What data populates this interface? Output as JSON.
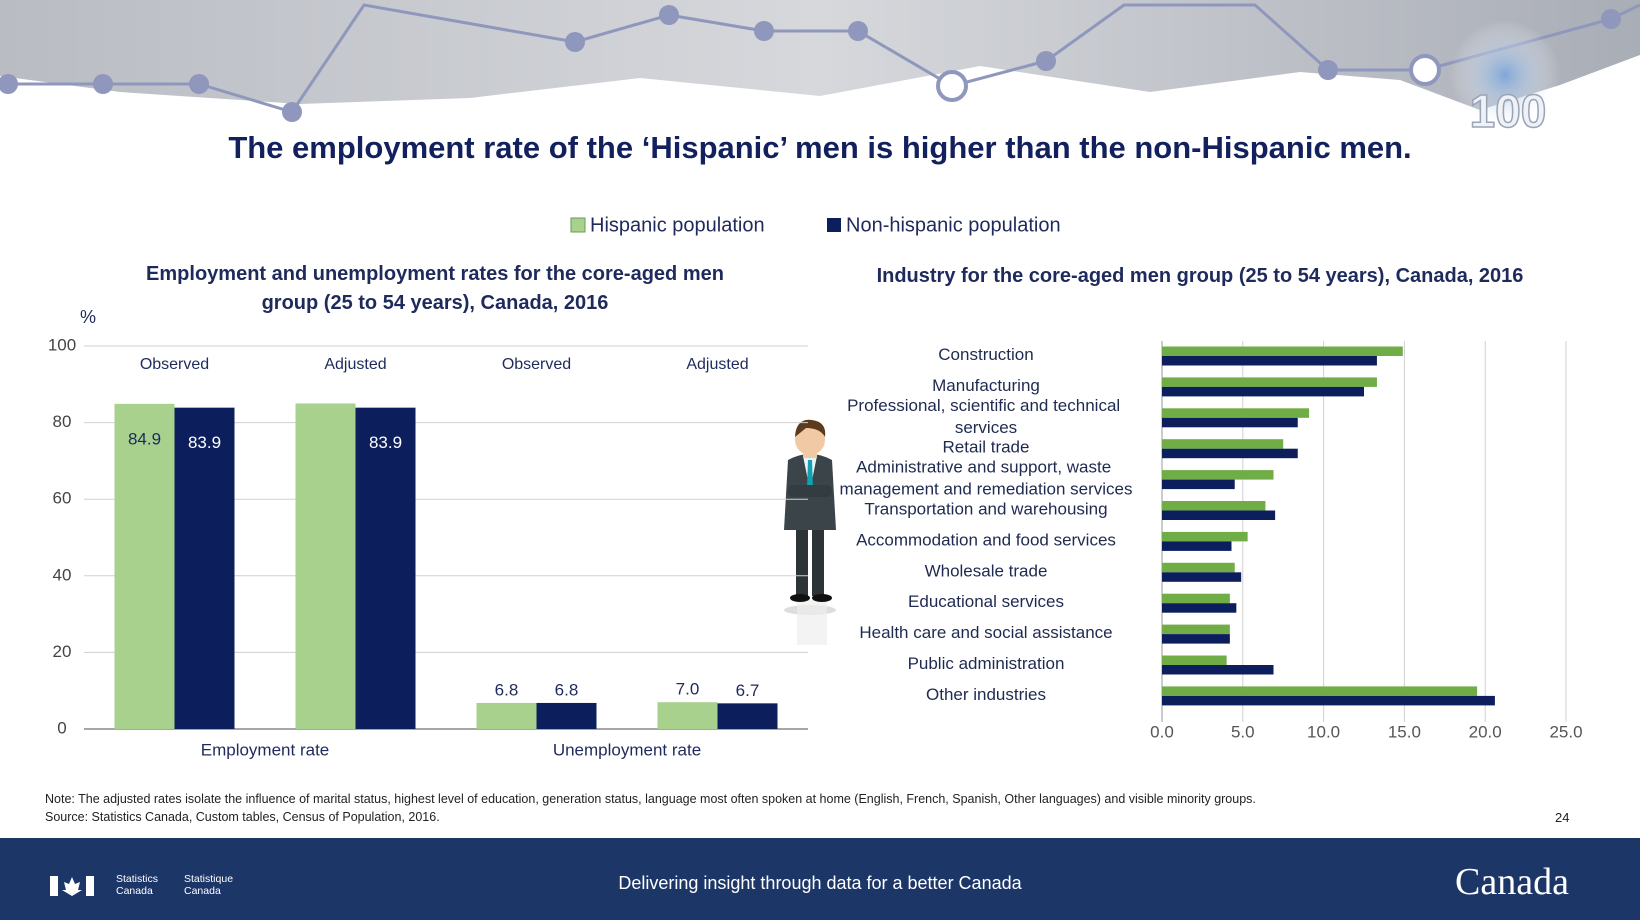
{
  "slide": {
    "title": "The employment rate of the ‘Hispanic’ men is higher than the non-Hispanic men.",
    "badge": "100",
    "note": "Note: The adjusted rates isolate the influence of marital status, highest level of education, generation status, language most often spoken at home (English, French, Spanish, Other languages) and visible minority groups.",
    "source": "Source: Statistics Canada, Custom tables, Census of Population, 2016.",
    "page_number": "24",
    "footer": "Delivering insight through data for a better Canada",
    "agency_en": "Statistics Canada",
    "agency_fr": "Statistique Canada",
    "wordmark": "Canada"
  },
  "chart_data": [
    {
      "type": "bar",
      "title": "Employment and unemployment rates for the core-aged men group (25 to 54 years), Canada, 2016",
      "y_label": "%",
      "categories": [
        "Observed",
        "Adjusted",
        "Observed",
        "Adjusted"
      ],
      "category_groups": [
        "Employment rate",
        "Unemployment rate"
      ],
      "series": [
        {
          "name": "Hispanic population",
          "color": "#a9d18e",
          "values": [
            84.9,
            85,
            6.8,
            7.0
          ],
          "value_labels": [
            "84.9",
            null,
            "6.8",
            "7.0"
          ]
        },
        {
          "name": "Non-hispanic population",
          "color": "#0c1f5c",
          "values": [
            83.9,
            83.9,
            6.8,
            6.7
          ],
          "value_labels": [
            "83.9",
            "83.9",
            "6.8",
            "6.7"
          ]
        }
      ],
      "ylim": [
        0,
        100
      ],
      "yticks": [
        0,
        20,
        40,
        60,
        80,
        100
      ],
      "grid": true,
      "legend": "top"
    },
    {
      "type": "bar",
      "horizontal": true,
      "title": "Industry for the core-aged men group (25 to 54 years), Canada, 2016",
      "categories": [
        "Construction",
        "Manufacturing",
        "Professional, scientific and technical services",
        "Retail trade",
        "Administrative and support, waste management and remediation services",
        "Transportation and warehousing",
        "Accommodation and food services",
        "Wholesale trade",
        "Educational services",
        "Health care and social assistance",
        "Public administration",
        "Other industries"
      ],
      "series": [
        {
          "color": "#70ad47",
          "values": [
            14.9,
            13.3,
            9.1,
            7.5,
            6.9,
            6.4,
            5.3,
            4.5,
            4.2,
            4.2,
            4.0,
            19.5
          ]
        },
        {
          "color": "#0c1f5c",
          "values": [
            13.3,
            12.5,
            8.4,
            8.4,
            4.5,
            7.0,
            4.3,
            4.9,
            4.6,
            4.2,
            6.9,
            20.6
          ]
        }
      ],
      "xlim": [
        0,
        25
      ],
      "xticks": [
        {
          "value": 0,
          "label": "0.0"
        },
        {
          "value": 5,
          "label": "5.0"
        },
        {
          "value": 10,
          "label": "10.0"
        },
        {
          "value": 15,
          "label": "15.0"
        },
        {
          "value": 20,
          "label": "20.0"
        },
        {
          "value": 25,
          "label": "25.0"
        }
      ],
      "grid": true
    }
  ]
}
